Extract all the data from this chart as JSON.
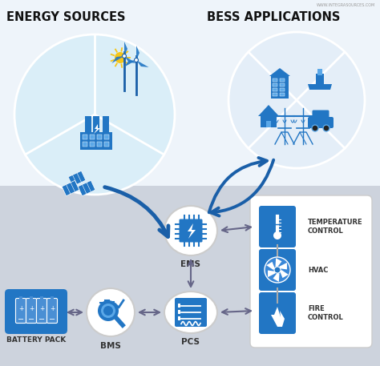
{
  "title_left": "ENERGY SOURCES",
  "title_right": "BESS APPLICATIONS",
  "watermark": "WWW.INTEGRASOURCES.COM",
  "bg_top": "#eef4fa",
  "bg_bottom": "#cdd3dd",
  "circle_color_left": "#daeef8",
  "circle_color_right": "#e4eef8",
  "blue_dark": "#1a5fa8",
  "blue_medium": "#2276c4",
  "blue_light": "#5ba8e8",
  "icon_bg": "#2276c4",
  "text_color": "#111111",
  "label_color": "#333333",
  "arrow_color": "#1a5fa8",
  "arrow_color_gray": "#666688",
  "ems_label": "EMS",
  "bottom_labels": [
    "BATTERY PACK",
    "BMS",
    "PCS"
  ],
  "right_labels": [
    "TEMPERATURE\nCONTROL",
    "HVAC",
    "FIRE\nCONTROL"
  ]
}
